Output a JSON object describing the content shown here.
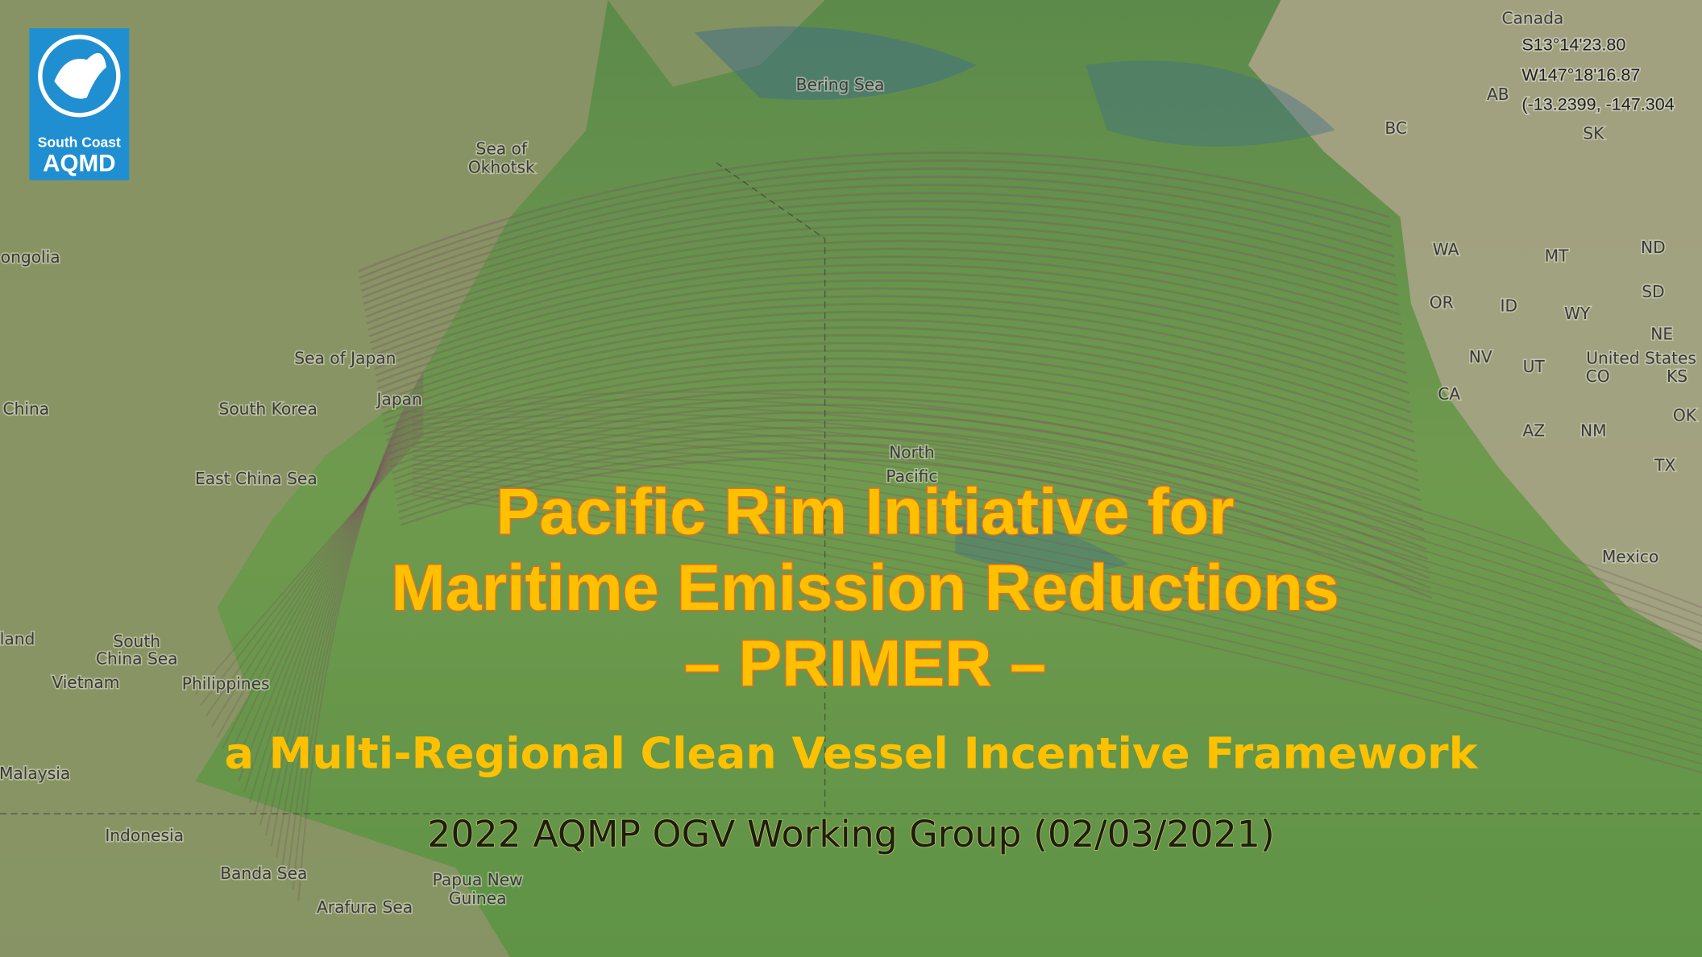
{
  "logo": {
    "line1": "South Coast",
    "line2": "AQMD"
  },
  "coordinates": [
    "S13°14'23.80",
    "W147°18'16.87",
    "(-13.2399, -147.304"
  ],
  "map": {
    "labels": [
      "Canada",
      "AB",
      "BC",
      "SK",
      "Bering Sea",
      "Sea of",
      "Okhotsk",
      "ongolia",
      "WA",
      "MT",
      "ND",
      "SD",
      "OR",
      "ID",
      "WY",
      "NE",
      "NV",
      "UT",
      "United States",
      "CO",
      "KS",
      "CA",
      "OK",
      "AZ",
      "NM",
      "TX",
      "Mexico",
      "Sea of Japan",
      "Japan",
      "South Korea",
      "China",
      "East China Sea",
      "North",
      "Pacific",
      "land",
      "South",
      "China Sea",
      "Vietnam",
      "Philippines",
      "Malaysia",
      "Indonesia",
      "Banda Sea",
      "Papua New",
      "Guinea",
      "Arafura Sea"
    ]
  },
  "title": {
    "lines": [
      "Pacific Rim Initiative for",
      "Maritime Emission Reductions",
      "– PRIMER –"
    ]
  },
  "subtitle": "a Multi-Regional Clean Vessel Incentive Framework",
  "meeting": "2022 AQMP OGV Working Group (02/03/2021)"
}
